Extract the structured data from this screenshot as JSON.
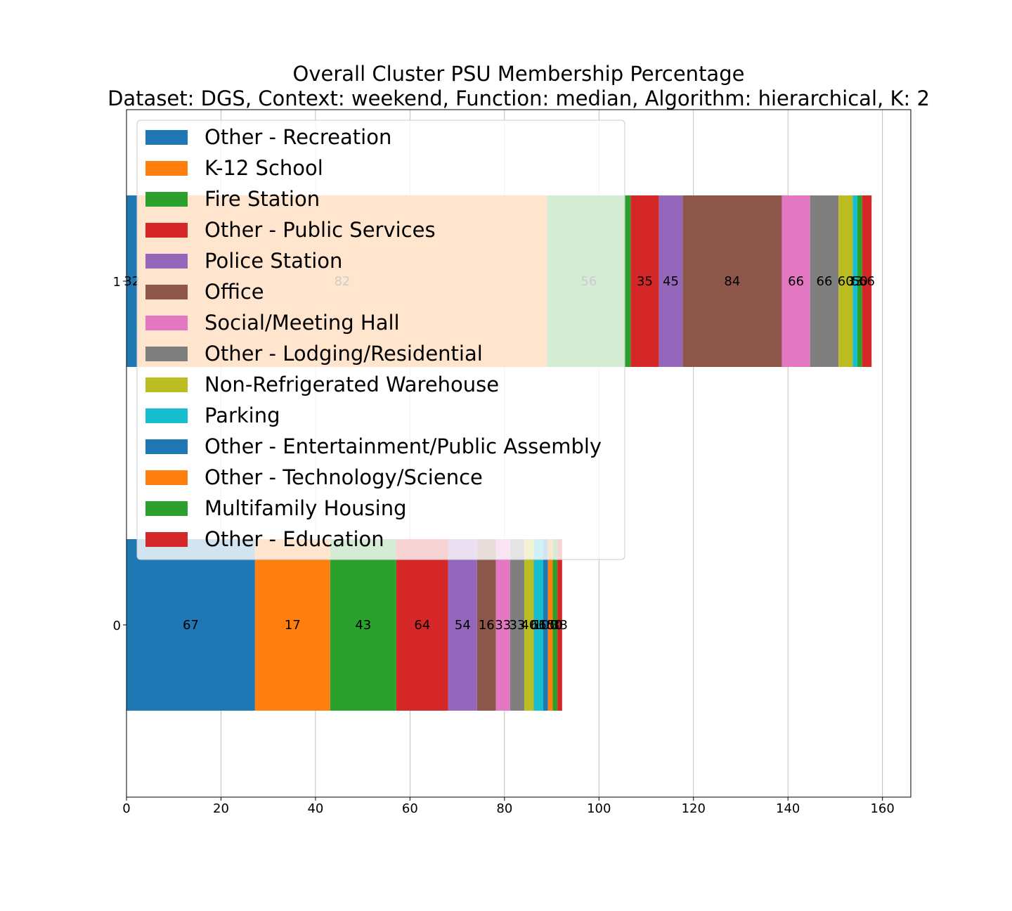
{
  "chart_data": {
    "type": "bar",
    "orientation": "horizontal",
    "stacked": true,
    "title": "Overall Cluster  PSU Membership Percentage",
    "subtitle": "Dataset: DGS, Context: weekend, Function: median, Algorithm: hierarchical, K: 2",
    "xlabel": "",
    "ylabel": "",
    "xlim": [
      0,
      166
    ],
    "x_ticks": [
      0,
      20,
      40,
      60,
      80,
      100,
      120,
      140,
      160
    ],
    "categories": [
      "0",
      "1"
    ],
    "grid": "x",
    "legend_position": "upper-left",
    "series": [
      {
        "name": "Other - Recreation",
        "color": "#1f77b4",
        "values": [
          27.2,
          2.3
        ],
        "labels": [
          "67",
          "32"
        ]
      },
      {
        "name": "K-12 School",
        "color": "#ff7f0e",
        "values": [
          15.9,
          86.7
        ],
        "labels": [
          "17",
          "82"
        ]
      },
      {
        "name": "Fire Station",
        "color": "#2ca02c",
        "values": [
          14.0,
          17.7
        ],
        "labels": [
          "43",
          "56"
        ]
      },
      {
        "name": "Other - Public Services",
        "color": "#d62728",
        "values": [
          11.0,
          6.0
        ],
        "labels": [
          "64",
          "35"
        ]
      },
      {
        "name": "Police Station",
        "color": "#9467bd",
        "values": [
          6.1,
          5.0
        ],
        "labels": [
          "54",
          "45"
        ]
      },
      {
        "name": "Office",
        "color": "#8c564b",
        "values": [
          4.0,
          21.0
        ],
        "labels": [
          "16",
          "84"
        ]
      },
      {
        "name": "Social/Meeting Hall",
        "color": "#e377c2",
        "values": [
          3.0,
          6.0
        ],
        "labels": [
          "33",
          "66"
        ]
      },
      {
        "name": "Other - Lodging/Residential",
        "color": "#7f7f7f",
        "values": [
          3.0,
          6.0
        ],
        "labels": [
          "33",
          "66"
        ]
      },
      {
        "name": "Non-Refrigerated Warehouse",
        "color": "#bcbd22",
        "values": [
          2.0,
          3.0
        ],
        "labels": [
          "40",
          "60"
        ]
      },
      {
        "name": "Parking",
        "color": "#17becf",
        "values": [
          2.0,
          1.0
        ],
        "labels": [
          "66",
          "33"
        ]
      },
      {
        "name": "Other - Entertainment/Public Assembly",
        "color": "#1f77b4",
        "values": [
          1.0,
          0.0
        ],
        "labels": [
          "100",
          ""
        ]
      },
      {
        "name": "Other - Technology/Science",
        "color": "#ff7f0e",
        "values": [
          1.0,
          0.0
        ],
        "labels": [
          "100",
          ""
        ]
      },
      {
        "name": "Multifamily Housing",
        "color": "#2ca02c",
        "values": [
          1.0,
          1.0
        ],
        "labels": [
          "50",
          "50"
        ]
      },
      {
        "name": "Other - Education",
        "color": "#d62728",
        "values": [
          1.0,
          2.0
        ],
        "labels": [
          "33",
          "66"
        ]
      }
    ]
  }
}
